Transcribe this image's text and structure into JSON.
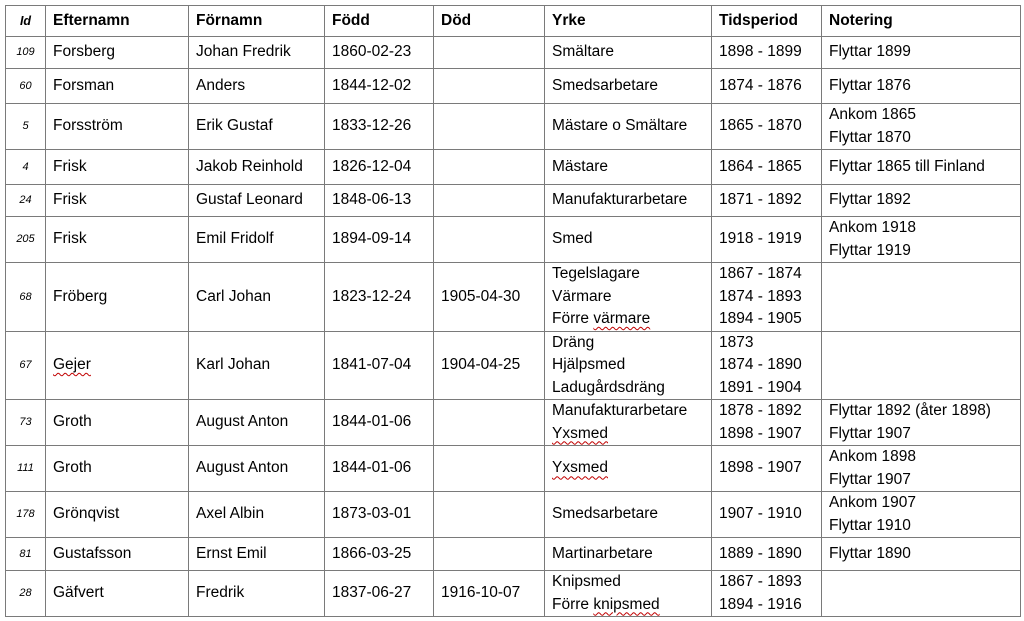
{
  "headers": [
    "Id",
    "Efternamn",
    "Förnamn",
    "Född",
    "Död",
    "Yrke",
    "Tidsperiod",
    "Notering"
  ],
  "rows": [
    {
      "id": "109",
      "efternamn": "Forsberg",
      "fornamn": "Johan Fredrik",
      "fodd": "1860-02-23",
      "dod": "",
      "yrke": [
        "Smältare"
      ],
      "tid": [
        "1898 - 1899"
      ],
      "notering": [
        "Flyttar 1899"
      ]
    },
    {
      "id": "60",
      "efternamn": "Forsman",
      "fornamn": "Anders",
      "fodd": "1844-12-02",
      "dod": "",
      "yrke": [
        "Smedsarbetare"
      ],
      "tid": [
        "1874 - 1876"
      ],
      "notering": [
        "Flyttar 1876"
      ]
    },
    {
      "id": "5",
      "efternamn": "Forsström",
      "fornamn": "Erik Gustaf",
      "fodd": "1833-12-26",
      "dod": "",
      "yrke": [
        "Mästare o Smältare"
      ],
      "tid": [
        "1865 - 1870"
      ],
      "notering": [
        "Ankom 1865",
        "Flyttar 1870"
      ]
    },
    {
      "id": "4",
      "efternamn": "Frisk",
      "fornamn": "Jakob Reinhold",
      "fodd": "1826-12-04",
      "dod": "",
      "yrke": [
        "Mästare"
      ],
      "tid": [
        "1864 - 1865"
      ],
      "notering": [
        "Flyttar 1865 till Finland"
      ]
    },
    {
      "id": "24",
      "efternamn": "Frisk",
      "fornamn": "Gustaf Leonard",
      "fodd": "1848-06-13",
      "dod": "",
      "yrke": [
        "Manufakturarbetare"
      ],
      "tid": [
        "1871 - 1892"
      ],
      "notering": [
        "Flyttar 1892"
      ]
    },
    {
      "id": "205",
      "efternamn": "Frisk",
      "fornamn": "Emil Fridolf",
      "fodd": "1894-09-14",
      "dod": "",
      "yrke": [
        "Smed"
      ],
      "tid": [
        "1918 - 1919"
      ],
      "notering": [
        "Ankom 1918",
        "Flyttar 1919"
      ]
    },
    {
      "id": "68",
      "efternamn": "Fröberg",
      "fornamn": "Carl Johan",
      "fodd": "1823-12-24",
      "dod": "1905-04-30",
      "yrke": [
        "Tegelslagare",
        "Värmare",
        "Förre värmare"
      ],
      "tid": [
        "1867 - 1874",
        "1874 - 1893",
        "1894 - 1905"
      ],
      "notering": []
    },
    {
      "id": "67",
      "efternamn": "Gejer",
      "fornamn": "Karl Johan",
      "fodd": "1841-07-04",
      "dod": "1904-04-25",
      "yrke": [
        "Dräng",
        "Hjälpsmed",
        "Ladugårdsdräng"
      ],
      "tid": [
        "1873",
        "1874 - 1890",
        "1891 - 1904"
      ],
      "notering": []
    },
    {
      "id": "73",
      "efternamn": "Groth",
      "fornamn": "August Anton",
      "fodd": "1844-01-06",
      "dod": "",
      "yrke": [
        "Manufakturarbetare",
        "Yxsmed"
      ],
      "tid": [
        "1878 - 1892",
        "1898 - 1907"
      ],
      "notering": [
        "Flyttar 1892 (åter 1898)",
        "Flyttar 1907"
      ]
    },
    {
      "id": "111",
      "efternamn": "Groth",
      "fornamn": "August Anton",
      "fodd": "1844-01-06",
      "dod": "",
      "yrke": [
        "Yxsmed"
      ],
      "tid": [
        "1898 - 1907"
      ],
      "notering": [
        "Ankom 1898",
        "Flyttar 1907"
      ]
    },
    {
      "id": "178",
      "efternamn": "Grönqvist",
      "fornamn": "Axel Albin",
      "fodd": "1873-03-01",
      "dod": "",
      "yrke": [
        "Smedsarbetare"
      ],
      "tid": [
        "1907 - 1910"
      ],
      "notering": [
        "Ankom 1907",
        "Flyttar 1910"
      ]
    },
    {
      "id": "81",
      "efternamn": "Gustafsson",
      "fornamn": "Ernst Emil",
      "fodd": "1866-03-25",
      "dod": "",
      "yrke": [
        "Martinarbetare"
      ],
      "tid": [
        "1889 - 1890"
      ],
      "notering": [
        "Flyttar 1890"
      ]
    },
    {
      "id": "28",
      "efternamn": "Gäfvert",
      "fornamn": "Fredrik",
      "fodd": "1837-06-27",
      "dod": "1916-10-07",
      "yrke": [
        "Knipsmed",
        "Förre knipsmed"
      ],
      "tid": [
        "1867 - 1893",
        "1894 - 1916"
      ],
      "notering": []
    }
  ]
}
